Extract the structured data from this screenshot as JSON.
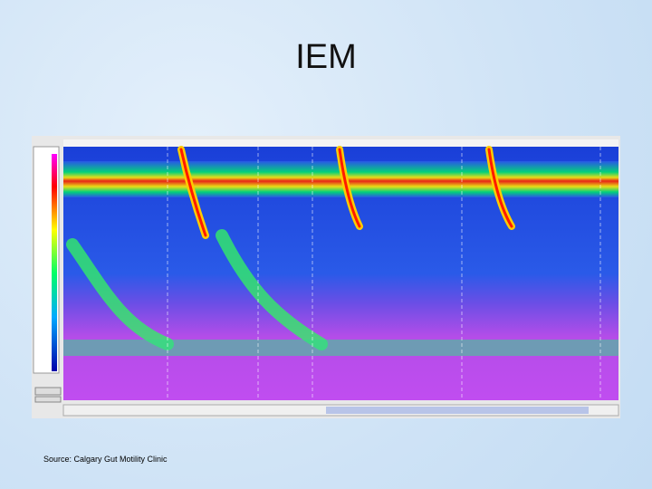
{
  "slide": {
    "title": "IEM",
    "source": "Source: Calgary Gut Motility Clinic"
  }
}
